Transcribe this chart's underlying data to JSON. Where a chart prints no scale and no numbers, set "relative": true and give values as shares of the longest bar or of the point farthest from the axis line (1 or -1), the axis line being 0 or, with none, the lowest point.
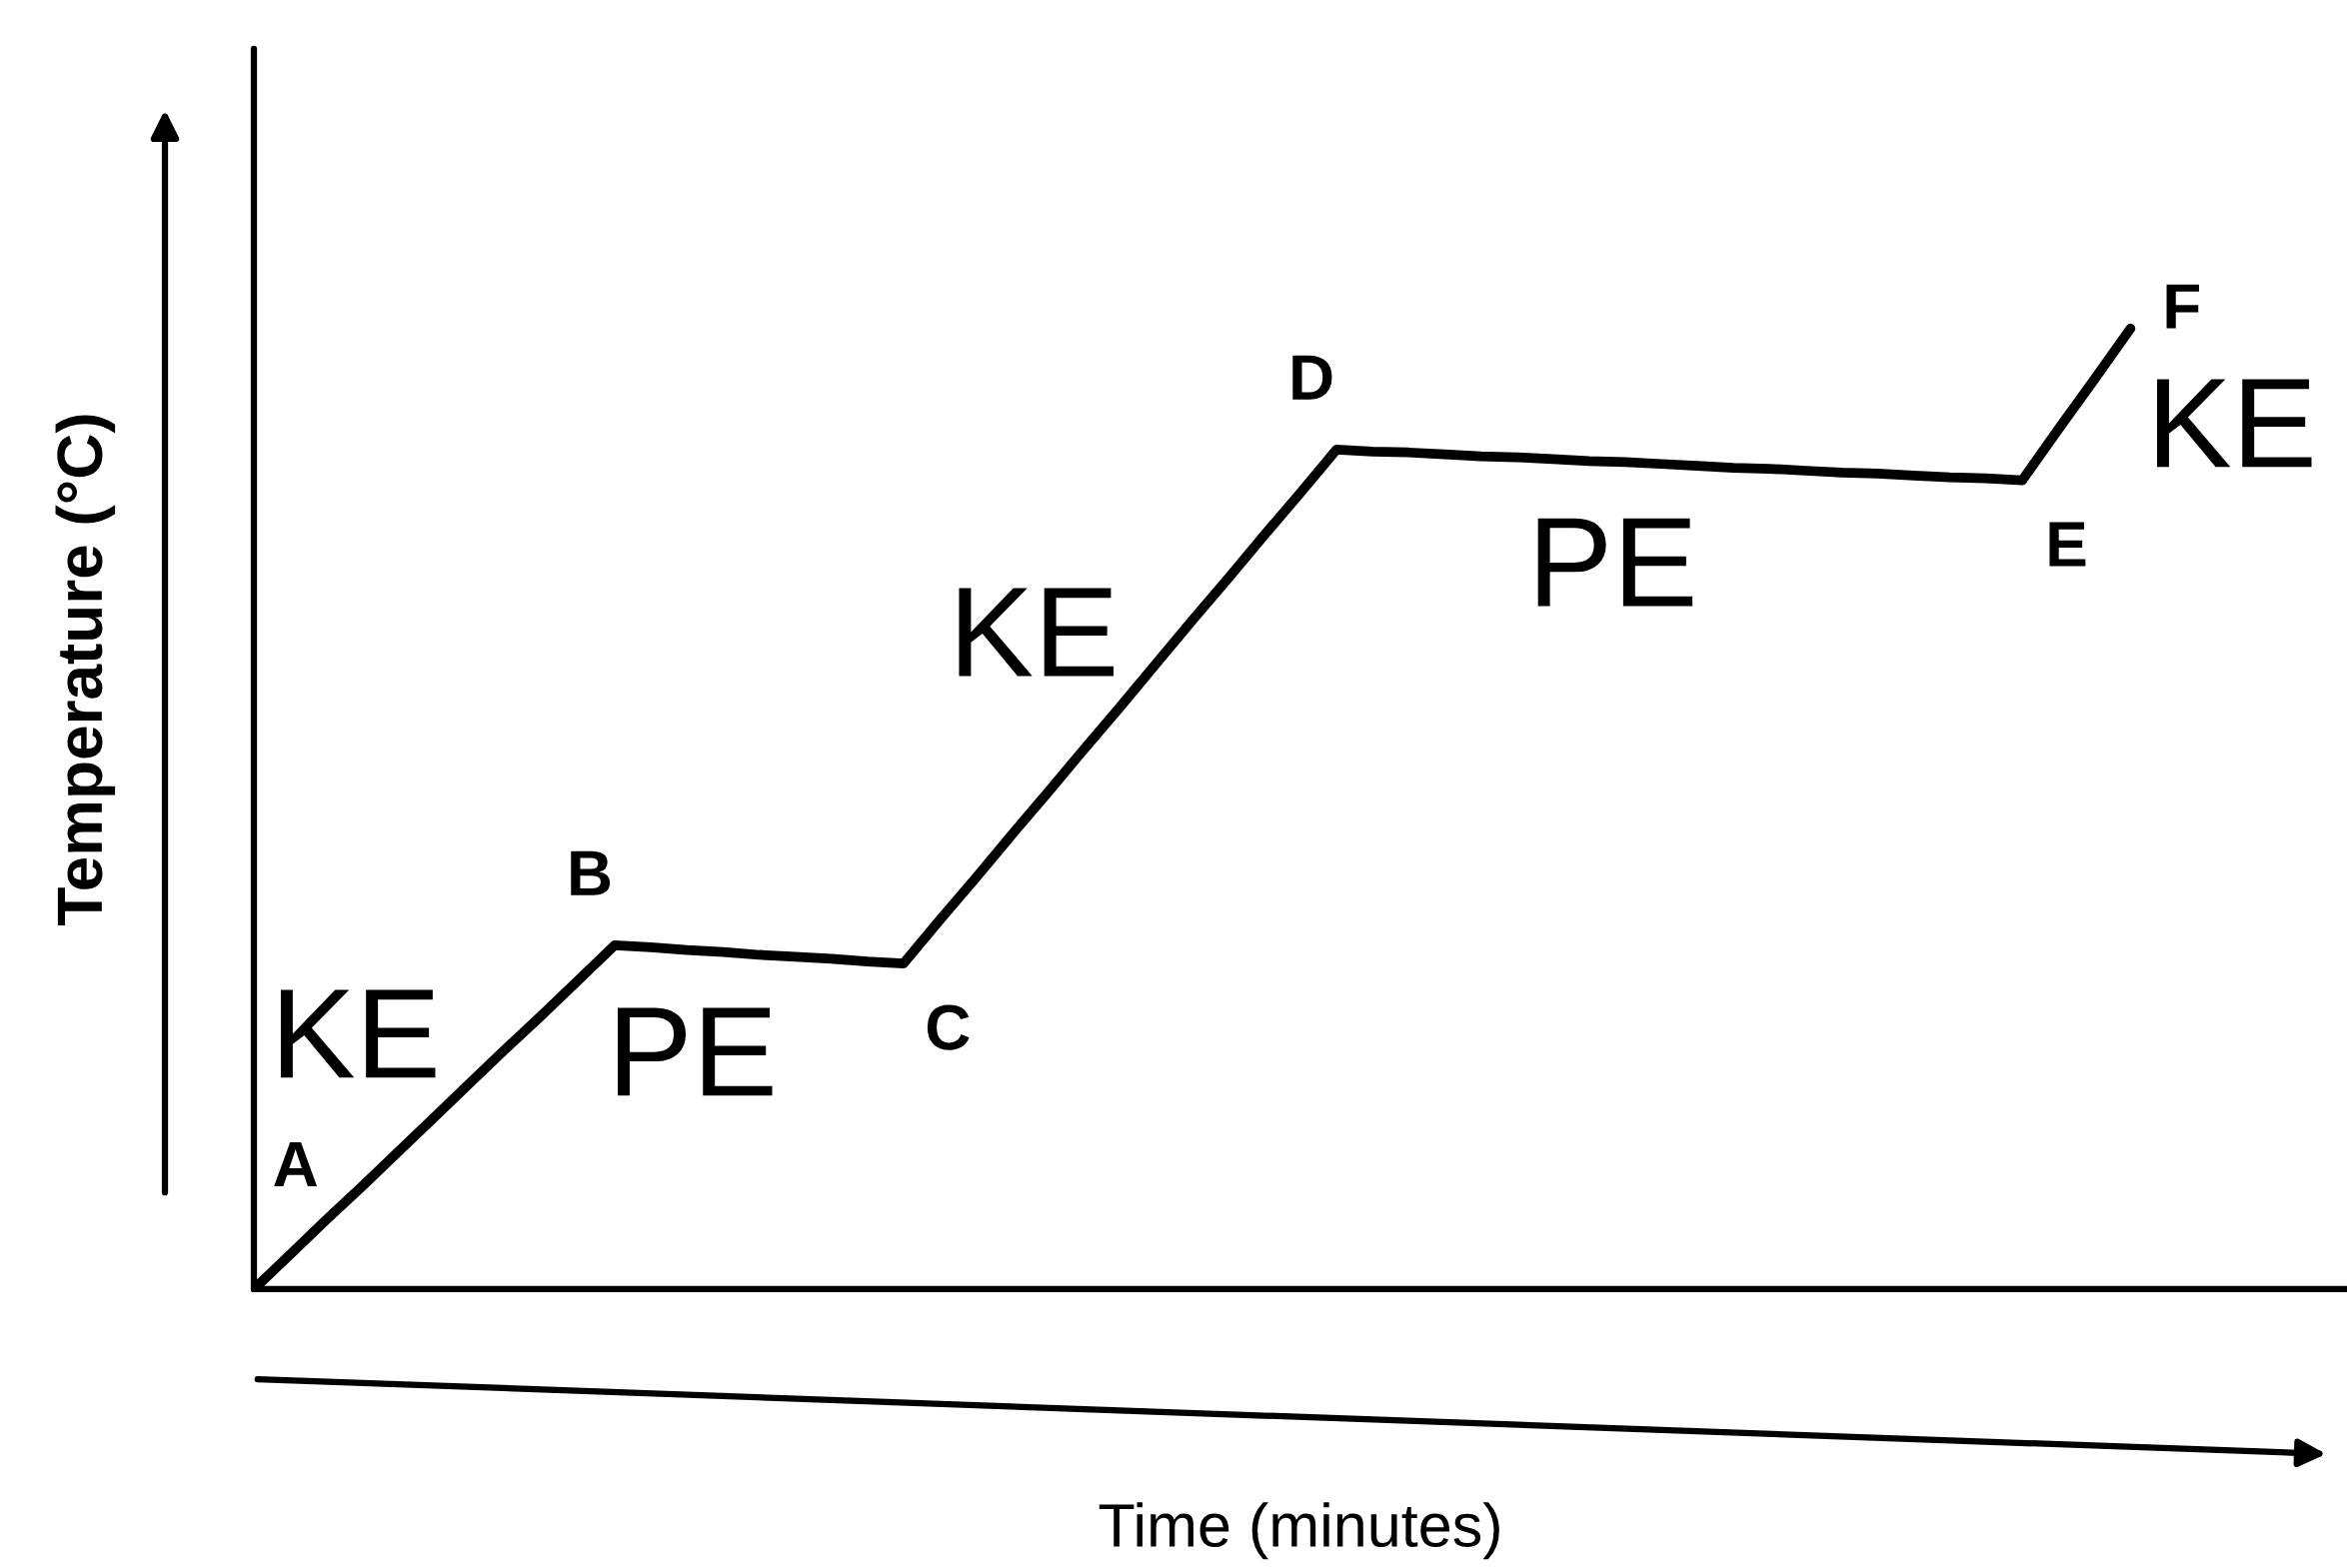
{
  "chart_data": {
    "type": "line",
    "xlabel": "Time (minutes)",
    "ylabel": "Temperature (°C)",
    "relative": true,
    "categories": [
      null,
      null,
      null,
      null,
      null,
      null,
      null,
      null,
      null,
      null,
      null,
      null,
      null,
      null,
      null,
      null,
      null,
      null,
      null,
      null,
      null,
      null,
      null,
      null,
      null,
      null,
      null,
      null,
      null,
      null,
      null,
      null,
      null,
      null,
      null,
      null,
      null,
      null,
      null,
      null,
      null,
      null,
      null,
      null,
      null,
      null,
      null,
      null,
      null,
      null,
      null,
      null,
      null,
      null,
      null,
      null,
      null,
      null,
      null
    ],
    "series": [
      {
        "color": "#000000",
        "values": [
          0,
          0.036,
          0.072,
          0.107,
          0.143,
          0.179,
          0.215,
          0.251,
          0.286,
          0.322,
          0.358,
          0.356,
          0.353,
          0.351,
          0.348,
          0.346,
          0.344,
          0.341,
          0.339,
          0.384,
          0.428,
          0.473,
          0.517,
          0.562,
          0.606,
          0.651,
          0.696,
          0.74,
          0.785,
          0.829,
          0.874,
          0.872,
          0.871,
          0.869,
          0.867,
          0.866,
          0.864,
          0.862,
          0.861,
          0.859,
          0.857,
          0.855,
          0.854,
          0.852,
          0.85,
          0.849,
          0.847,
          0.845,
          0.844,
          0.842,
          0.895,
          0.947,
          1,
          null,
          null,
          null,
          null,
          null,
          null
        ]
      }
    ],
    "annotations": [
      "A",
      "B",
      "C",
      "D",
      "E",
      "F",
      "KE",
      "PE",
      "KE",
      "PE",
      "KE"
    ]
  }
}
